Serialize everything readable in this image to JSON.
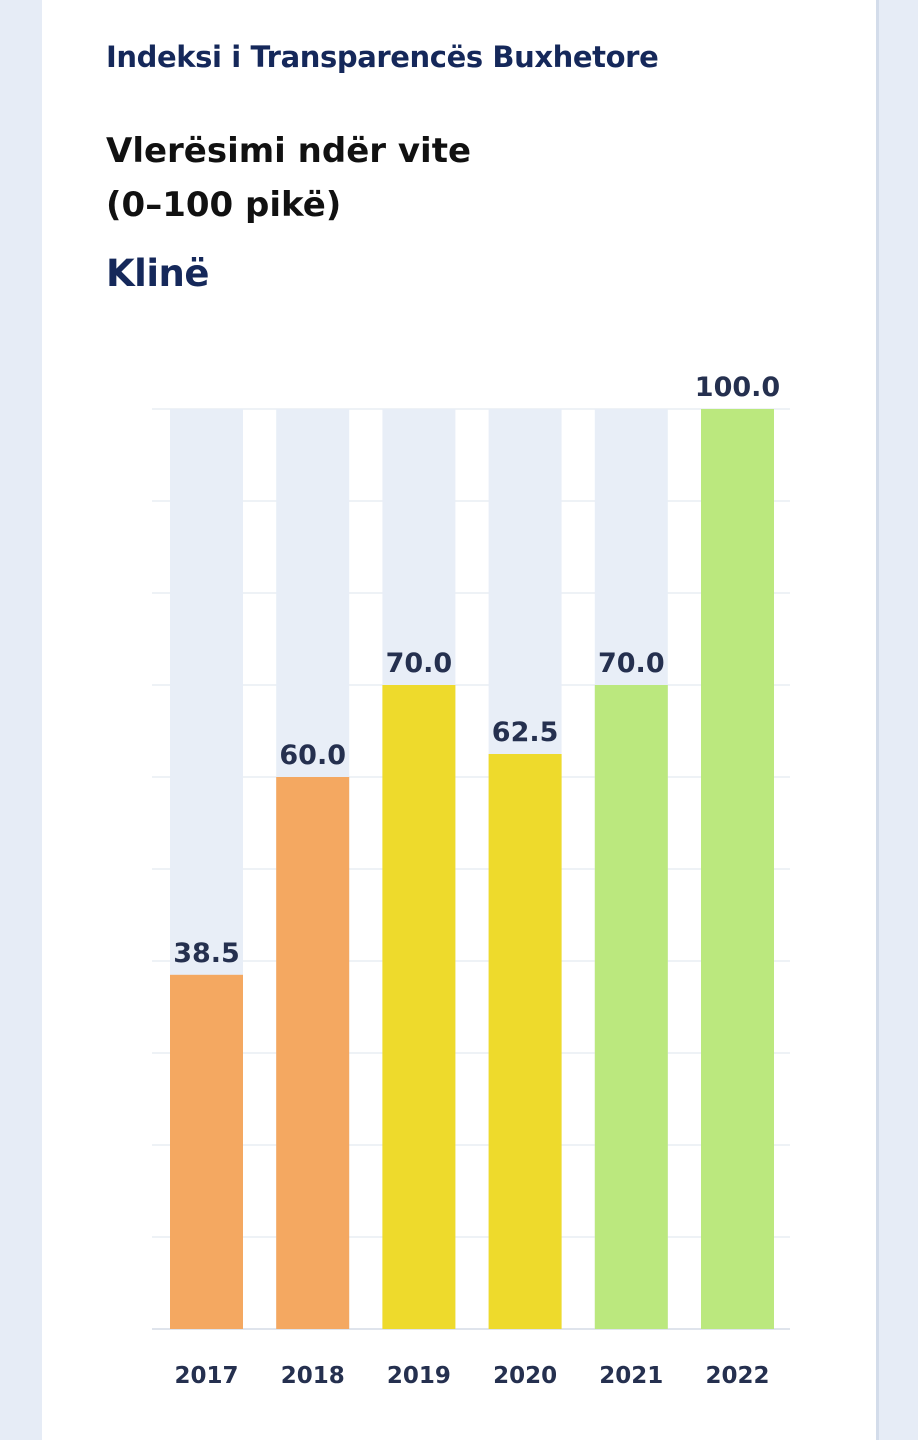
{
  "header": {
    "title": "Indeksi i Transparencës Buxhetore"
  },
  "chart_title": {
    "line1": "Vlerësimi ndër vite",
    "line2": "(0–100 pikë)"
  },
  "subject": "Klinë",
  "colors": {
    "navy": "#15285a",
    "orange": "#f4a861",
    "yellow": "#eeda2c",
    "green": "#bbe87e",
    "track": "#e8eef7",
    "grid": "#e9edf3"
  },
  "chart_data": {
    "type": "bar",
    "title": "Vlerësimi ndër vite (0–100 pikë)",
    "subtitle": "Klinë",
    "categories": [
      "2017",
      "2018",
      "2019",
      "2020",
      "2021",
      "2022"
    ],
    "values": [
      38.5,
      60.0,
      70.0,
      62.5,
      70.0,
      100.0
    ],
    "value_labels": [
      "38.5",
      "60.0",
      "70.0",
      "62.5",
      "70.0",
      "100.0"
    ],
    "bar_colors": [
      "#f4a861",
      "#f4a861",
      "#eeda2c",
      "#eeda2c",
      "#bbe87e",
      "#bbe87e"
    ],
    "ylim": [
      0,
      100
    ],
    "y_tick_labels_shown": false,
    "grid": true,
    "legend": "none"
  }
}
